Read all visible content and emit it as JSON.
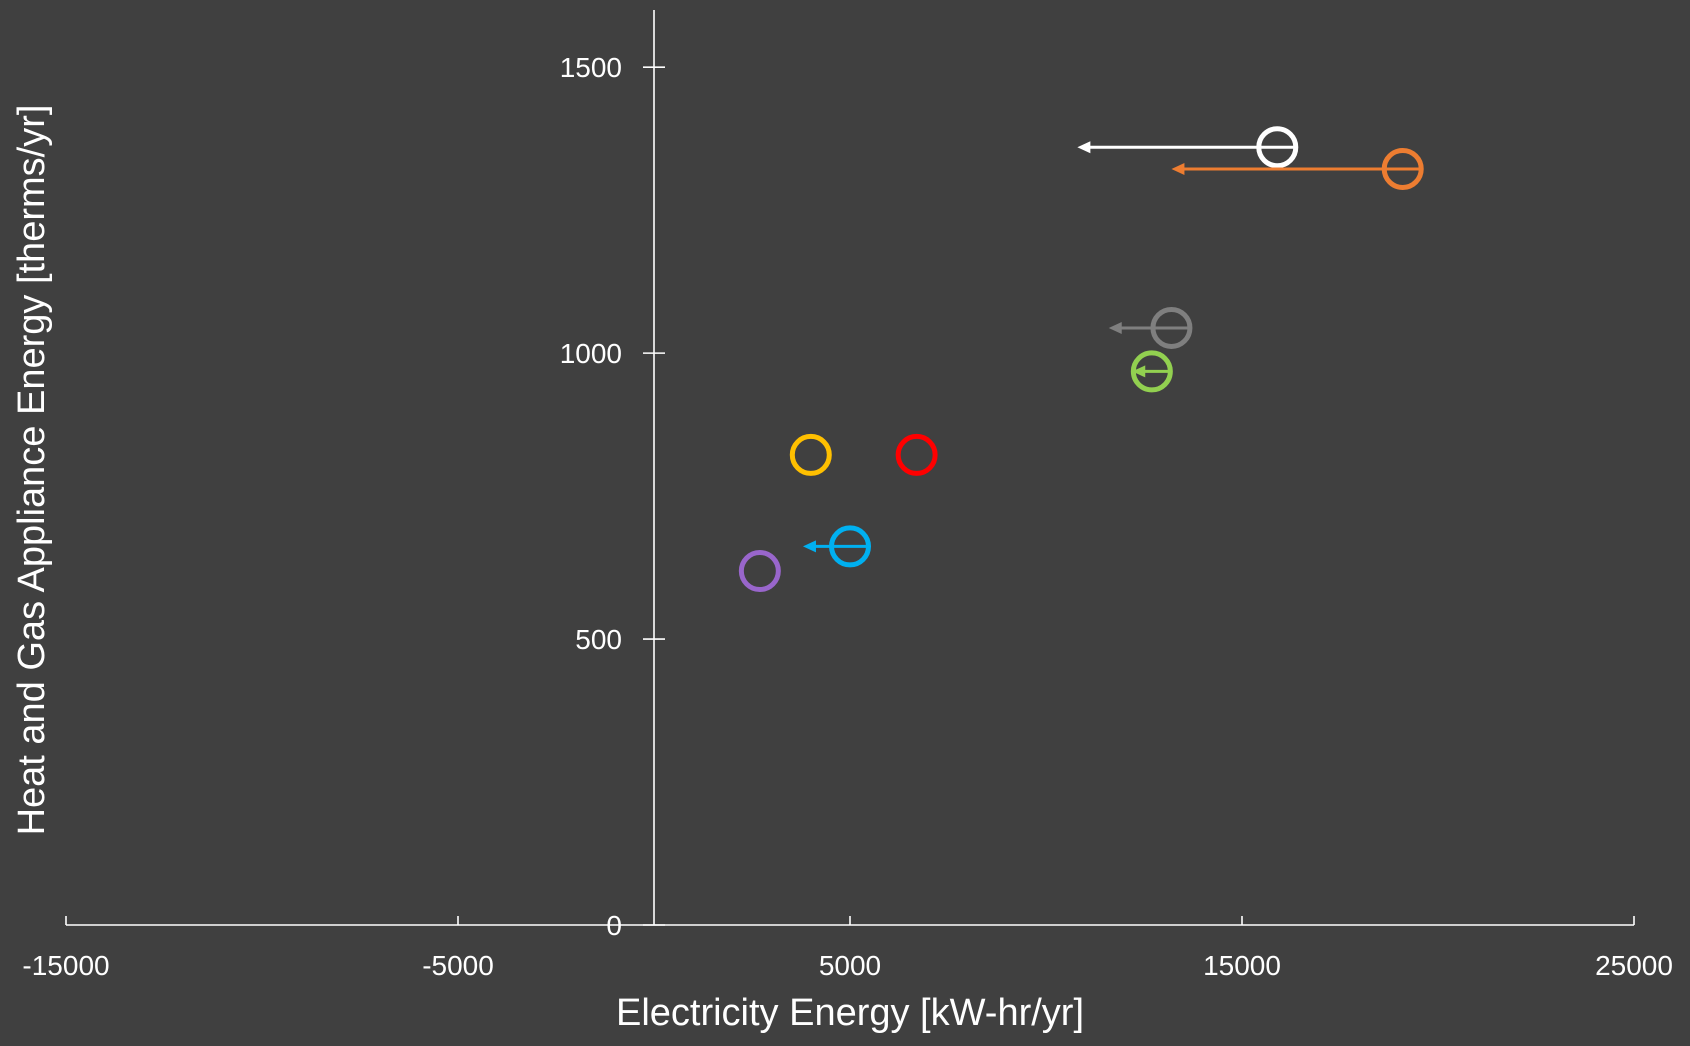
{
  "chart_data": {
    "type": "scatter",
    "title": "",
    "xlabel": "Electricity Energy [kW-hr/yr]",
    "ylabel": "Heat and Gas Appliance Energy [therms/yr]",
    "xlim": [
      -15000,
      25000
    ],
    "ylim": [
      0,
      1600
    ],
    "x_ticks": [
      -15000,
      -5000,
      5000,
      15000,
      25000
    ],
    "y_ticks": [
      0,
      500,
      1000,
      1500
    ],
    "x_tick_labels": [
      "-15000",
      "-5000",
      "5000",
      "15000",
      "25000"
    ],
    "y_tick_labels": [
      "0",
      "500",
      "1000",
      "1500"
    ],
    "grid": false,
    "legend": "none",
    "series": [
      {
        "color": "#ffffff",
        "x": 15900,
        "y": 1360,
        "arrow_to_x": 10800
      },
      {
        "color": "#ed7d31",
        "x": 19100,
        "y": 1322,
        "arrow_to_x": 13200
      },
      {
        "color": "#7f7f7f",
        "x": 13200,
        "y": 1044,
        "arrow_to_x": 11600
      },
      {
        "color": "#92d050",
        "x": 12700,
        "y": 968,
        "arrow_to_x": 12200
      },
      {
        "color": "#ffc000",
        "x": 4000,
        "y": 822
      },
      {
        "color": "#ff0000",
        "x": 6700,
        "y": 822
      },
      {
        "color": "#00b0f0",
        "x": 5000,
        "y": 662,
        "arrow_to_x": 3800
      },
      {
        "color": "#9966cc",
        "x": 2700,
        "y": 619
      }
    ]
  }
}
